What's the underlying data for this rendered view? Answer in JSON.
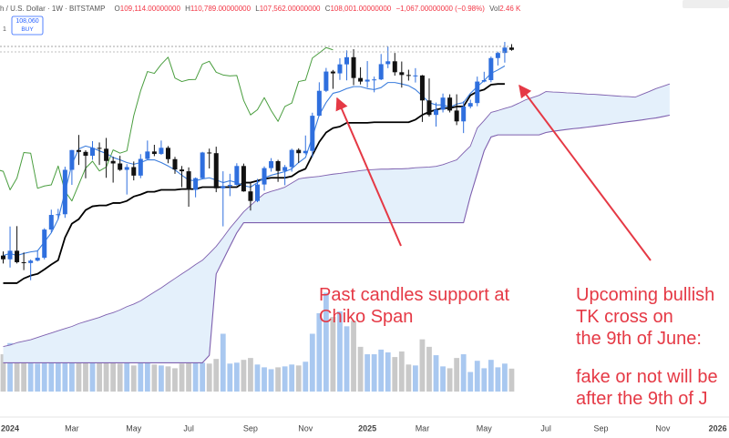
{
  "header": {
    "symbol": "h / U.S. Dollar · 1W · BITSTAMP",
    "ohlc": [
      {
        "label": "O",
        "value": "109,114.00000000"
      },
      {
        "label": "H",
        "value": "110,789.00000000"
      },
      {
        "label": "L",
        "value": "107,562.00000000"
      },
      {
        "label": "C",
        "value": "108,001.00000000"
      }
    ],
    "change": "−1,067.00000000 (−0.98%)",
    "volume_label": "Vol",
    "volume": "2.46 K",
    "badge_price": "108,060",
    "badge_action": "BUY",
    "pane": "1"
  },
  "annotations": [
    {
      "lines": [
        "Past candles support at",
        "Chiko Span"
      ]
    },
    {
      "lines": [
        "Upcoming bullish",
        "TK cross on",
        "the 9th of June:",
        "fake or not will be",
        "after the 9th of J"
      ]
    }
  ],
  "chart_data": {
    "type": "candlestick",
    "log": true,
    "ylim": [
      26000,
      135000
    ],
    "y2lim": [
      0,
      42000
    ],
    "up_color": "#2f6fde",
    "down_color": "#111111",
    "volume_up_color": "#a9c8f0",
    "volume_down_color": "#c9c9c9",
    "categories": [
      null,
      "2024",
      null,
      null,
      null,
      null,
      null,
      null,
      null,
      null,
      "Mar",
      null,
      null,
      null,
      null,
      null,
      null,
      null,
      null,
      "May",
      null,
      null,
      null,
      null,
      null,
      null,
      null,
      "Jul",
      null,
      null,
      null,
      null,
      null,
      null,
      null,
      null,
      "Sep",
      null,
      null,
      null,
      null,
      null,
      null,
      null,
      "Nov",
      null,
      null,
      null,
      null,
      null,
      null,
      null,
      null,
      "2025",
      null,
      null,
      null,
      null,
      null,
      null,
      null,
      "Mar",
      null,
      null,
      null,
      null,
      null,
      null,
      null,
      null,
      "May",
      null,
      null,
      null,
      null,
      null,
      null,
      null,
      null,
      "Jul",
      null,
      null,
      null,
      null,
      null,
      null,
      null,
      "Sep",
      null,
      null,
      null,
      null,
      null,
      null,
      null,
      null,
      "Nov",
      null,
      null,
      null,
      null,
      null,
      null,
      null,
      "2026"
    ],
    "open": [
      42990,
      42280,
      43930,
      41730,
      41580,
      42030,
      42580,
      48300,
      51570,
      51730,
      63110,
      68950,
      68390,
      67210,
      69630,
      69360,
      65670,
      64940,
      63110,
      63890,
      61500,
      66270,
      68510,
      67760,
      69650,
      66200,
      63200,
      62700,
      57700,
      60800,
      68200,
      68000,
      58100,
      58700,
      59000,
      64200,
      57300,
      54900,
      59100,
      63600,
      65600,
      62800,
      63900,
      69000,
      68000,
      68700,
      80400,
      89900,
      98000,
      97200,
      101200,
      104500,
      95200,
      93700,
      94500,
      94600,
      101300,
      102600,
      97700,
      96500,
      96100,
      96300,
      86100,
      80700,
      82600,
      87200,
      82300,
      78400,
      83800,
      85100,
      93700,
      94300,
      104100,
      106500,
      109114,
      null,
      null,
      null,
      null,
      null,
      null,
      null,
      null,
      null,
      null,
      null,
      null,
      null,
      null,
      null,
      null,
      null,
      null,
      null,
      null,
      null,
      null,
      null,
      null,
      null,
      null,
      null,
      null,
      null,
      null
    ],
    "high": [
      43800,
      48970,
      49050,
      43580,
      42250,
      43860,
      48590,
      52800,
      52990,
      64000,
      69000,
      73780,
      68900,
      71770,
      71340,
      72800,
      66900,
      67200,
      64750,
      65500,
      67700,
      71950,
      70600,
      71950,
      70200,
      66900,
      64200,
      63800,
      61000,
      68400,
      69400,
      70000,
      62700,
      62000,
      65000,
      64900,
      59800,
      60600,
      64100,
      66500,
      66000,
      64500,
      69400,
      69500,
      73600,
      81500,
      93400,
      99600,
      98700,
      104000,
      107700,
      108300,
      99900,
      102700,
      95800,
      106000,
      109600,
      106500,
      102500,
      98800,
      99500,
      96500,
      95000,
      85300,
      88800,
      88500,
      88500,
      85800,
      86400,
      95800,
      97900,
      104800,
      107100,
      111900,
      110789,
      null,
      null,
      null,
      null,
      null,
      null,
      null,
      null,
      null,
      null,
      null,
      null,
      null,
      null,
      null,
      null,
      null,
      null,
      null,
      null,
      null,
      null,
      null,
      null,
      null,
      null,
      null,
      null,
      null,
      null
    ],
    "low": [
      41500,
      40750,
      41500,
      40280,
      38500,
      41880,
      42260,
      47700,
      50520,
      50900,
      59000,
      64500,
      60770,
      66000,
      64500,
      60900,
      59600,
      62800,
      56500,
      60200,
      60800,
      66100,
      67100,
      67500,
      65000,
      62000,
      58400,
      53500,
      55800,
      60600,
      63500,
      57100,
      49000,
      56100,
      58800,
      57200,
      52600,
      54600,
      57500,
      62600,
      59800,
      58900,
      62600,
      65100,
      67600,
      66800,
      80300,
      89400,
      90700,
      94400,
      94200,
      92200,
      92500,
      91200,
      89300,
      94300,
      99500,
      96200,
      91200,
      94100,
      93300,
      78200,
      80100,
      76600,
      81600,
      81600,
      77100,
      74400,
      83100,
      83900,
      93400,
      93400,
      100700,
      102000,
      107562,
      null,
      null,
      null,
      null,
      null,
      null,
      null,
      null,
      null,
      null,
      null,
      null,
      null,
      null,
      null,
      null,
      null,
      null,
      null,
      null,
      null,
      null,
      null,
      null,
      null,
      null,
      null,
      null,
      null,
      null
    ],
    "close": [
      42280,
      43930,
      41730,
      41580,
      42030,
      42580,
      48300,
      51570,
      51730,
      63110,
      68950,
      68390,
      67210,
      69630,
      69360,
      65670,
      64940,
      63110,
      63890,
      61500,
      66270,
      68510,
      67760,
      69650,
      66200,
      63200,
      62700,
      57700,
      60800,
      68200,
      68000,
      58100,
      58700,
      59000,
      64200,
      57300,
      54900,
      59100,
      63600,
      65600,
      62800,
      63900,
      69000,
      68000,
      68700,
      80400,
      89900,
      98000,
      97200,
      101200,
      104500,
      95200,
      93700,
      94500,
      94600,
      101300,
      102600,
      97700,
      96500,
      96100,
      96300,
      86100,
      80700,
      82600,
      87200,
      82300,
      78400,
      83800,
      85100,
      93700,
      94300,
      104100,
      106500,
      109100,
      108001,
      null,
      null,
      null,
      null,
      null,
      null,
      null,
      null,
      null,
      null,
      null,
      null,
      null,
      null,
      null,
      null,
      null,
      null,
      null,
      null,
      null,
      null,
      null,
      null,
      null,
      null,
      null,
      null,
      null,
      null
    ],
    "volume": [
      4000,
      5200,
      4500,
      3800,
      3600,
      3000,
      3900,
      4300,
      3200,
      6000,
      5800,
      5400,
      4400,
      3600,
      3500,
      3900,
      3700,
      3000,
      4200,
      2800,
      3300,
      3700,
      2900,
      2800,
      2700,
      2500,
      3000,
      4100,
      3400,
      3100,
      3000,
      3500,
      6200,
      3000,
      3100,
      3400,
      3600,
      2900,
      2600,
      2400,
      2600,
      2700,
      2900,
      2800,
      3200,
      6200,
      8400,
      10600,
      8000,
      8600,
      7000,
      7600,
      4800,
      4000,
      4000,
      4500,
      4200,
      3700,
      4300,
      2900,
      2800,
      5600,
      4800,
      3900,
      2700,
      2500,
      3600,
      4000,
      2100,
      3300,
      2500,
      3400,
      2600,
      3000,
      2460,
      null,
      null,
      null,
      null,
      null,
      null,
      null,
      null,
      null,
      null,
      null,
      null,
      null,
      null,
      null,
      null,
      null,
      null,
      null,
      null,
      null,
      null,
      null,
      null,
      null,
      null,
      null,
      null,
      null,
      null
    ],
    "lines": [
      {
        "color": "#000000",
        "width": 1.8,
        "values": [
          38000,
          38000,
          38000,
          38800,
          39300,
          39600,
          40400,
          41300,
          42100,
          46600,
          49600,
          50600,
          52700,
          53600,
          53800,
          53800,
          54400,
          54400,
          54900,
          56000,
          56500,
          57200,
          57200,
          57700,
          57700,
          57700,
          57900,
          57900,
          57900,
          58400,
          58400,
          58400,
          58400,
          58400,
          58400,
          59600,
          59600,
          60100,
          60600,
          60900,
          60900,
          60900,
          61300,
          62600,
          63400,
          67400,
          71500,
          74600,
          76100,
          76600,
          77900,
          77900,
          77900,
          77900,
          78100,
          78100,
          78100,
          78100,
          78100,
          78100,
          79000,
          80700,
          81800,
          82600,
          83200,
          83200,
          83800,
          83800,
          88100,
          89600,
          90400,
          92400,
          92700,
          92700,
          null,
          null,
          null,
          null,
          null,
          null,
          null,
          null,
          null,
          null,
          null,
          null,
          null,
          null,
          null,
          null,
          null,
          null,
          null,
          null,
          null,
          null,
          null,
          null,
          null,
          null,
          null,
          null,
          null,
          null,
          null
        ]
      },
      {
        "color": "#3b7ddd",
        "width": 1.1,
        "values": [
          43000,
          43400,
          43000,
          43400,
          43700,
          43900,
          45700,
          47600,
          50600,
          57200,
          64700,
          69300,
          70200,
          69600,
          68700,
          67900,
          66700,
          66000,
          65200,
          64700,
          65200,
          66000,
          66000,
          65200,
          64200,
          63100,
          61600,
          60300,
          60100,
          60600,
          60900,
          60300,
          59600,
          60100,
          59600,
          58800,
          58400,
          59600,
          60900,
          61600,
          62100,
          62600,
          63400,
          65200,
          66700,
          73100,
          80700,
          85300,
          88900,
          89600,
          90800,
          91600,
          91600,
          90800,
          90400,
          91200,
          93300,
          93300,
          92700,
          92000,
          90400,
          87900,
          85300,
          84400,
          84400,
          83500,
          84700,
          85300,
          88900,
          91600,
          94100,
          97200,
          98700,
          100500,
          null,
          null,
          null,
          null,
          null,
          null,
          null,
          null,
          null,
          null,
          null,
          null,
          null,
          null,
          null,
          null,
          null,
          null,
          null,
          null,
          null,
          null,
          null,
          null,
          null,
          null,
          null,
          null,
          null,
          null,
          null
        ]
      }
    ],
    "chikou_color": "#4a9e3f",
    "cloud": {
      "edge_color": "#7e5fae",
      "fill": "#e4f0fb",
      "span_a": [
        28600,
        28800,
        29100,
        29300,
        29500,
        29800,
        30100,
        30400,
        30700,
        31000,
        31300,
        31700,
        32000,
        32300,
        32600,
        33000,
        33300,
        33700,
        34200,
        34600,
        35100,
        35800,
        36500,
        37200,
        38000,
        38800,
        39600,
        40400,
        41300,
        42100,
        43400,
        44800,
        46600,
        48600,
        50400,
        52300,
        53800,
        55300,
        56700,
        57300,
        57800,
        58400,
        59500,
        60600,
        60900,
        61100,
        61300,
        61600,
        61900,
        62100,
        62400,
        62600,
        62900,
        63100,
        63200,
        63300,
        63300,
        63400,
        63400,
        63500,
        63700,
        63800,
        63900,
        64100,
        64600,
        65300,
        66000,
        68100,
        70200,
        76100,
        78700,
        81600,
        82300,
        83100,
        83800,
        85000,
        86300,
        87200,
        88100,
        89600,
        89400,
        89300,
        89100,
        89000,
        88800,
        88600,
        88500,
        88300,
        88100,
        87900,
        87700,
        87600,
        87400,
        88500,
        89600,
        90800,
        91700,
        92700,
        null,
        null,
        null,
        null,
        null,
        null,
        null
      ],
      "span_b": [
        26600,
        26600,
        26600,
        26600,
        26600,
        26600,
        26600,
        26600,
        26600,
        26600,
        26600,
        26600,
        26600,
        26600,
        26600,
        26600,
        26600,
        26600,
        26600,
        26600,
        26600,
        26600,
        26600,
        26600,
        26600,
        26600,
        26600,
        26600,
        26600,
        26600,
        27500,
        39600,
        42100,
        44800,
        47600,
        49800,
        49800,
        49800,
        49800,
        49800,
        49800,
        49800,
        49800,
        49800,
        49800,
        49800,
        49800,
        49800,
        49800,
        49800,
        49800,
        49800,
        49800,
        49800,
        49800,
        49800,
        49800,
        49800,
        49800,
        49800,
        49800,
        49800,
        49800,
        49800,
        49800,
        49800,
        49800,
        49800,
        56100,
        62100,
        68700,
        73100,
        73800,
        73800,
        73800,
        73800,
        73800,
        73800,
        73800,
        74600,
        75000,
        75300,
        75600,
        75900,
        76100,
        76400,
        76700,
        77000,
        77300,
        77700,
        78000,
        78300,
        78600,
        78900,
        79300,
        79600,
        80100,
        80600,
        null,
        null,
        null,
        null,
        null,
        null,
        null
      ]
    }
  }
}
